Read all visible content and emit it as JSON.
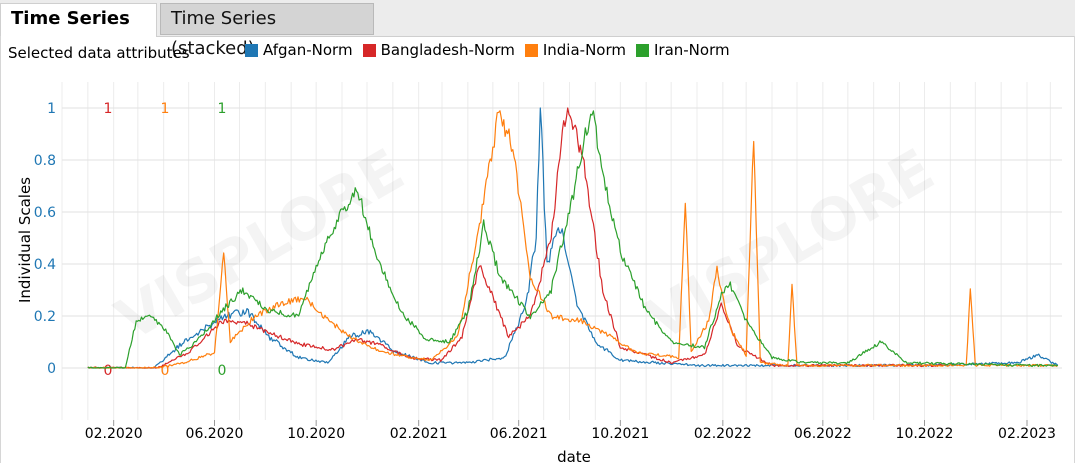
{
  "tabs": [
    {
      "label": "Time Series",
      "active": true
    },
    {
      "label": "Time Series (stacked)",
      "active": false
    }
  ],
  "selected_label": "Selected data attributes",
  "chart_data": {
    "type": "line",
    "xlabel": "date",
    "ylabel": "Individual Scales",
    "x_range": [
      "2019-12-01",
      "2023-03-15"
    ],
    "ylim": [
      -0.2,
      1.1
    ],
    "x_ticks": [
      "02.2020",
      "06.2020",
      "10.2020",
      "02.2021",
      "06.2021",
      "10.2021",
      "02.2022",
      "06.2022",
      "10.2022",
      "02.2023"
    ],
    "y_ticks": [
      "0",
      "0.2",
      "0.4",
      "0.6",
      "0.8",
      "1"
    ],
    "grid": true,
    "legend": "top",
    "watermark": "VISPLORE",
    "series": [
      {
        "name": "Afgan-Norm",
        "color": "#1f77b4",
        "scale_min": "0",
        "scale_max": "1",
        "points": [
          [
            "2020-01-01",
            0
          ],
          [
            "2020-03-20",
            0
          ],
          [
            "2020-04-25",
            0.1
          ],
          [
            "2020-05-20",
            0.15
          ],
          [
            "2020-06-15",
            0.2
          ],
          [
            "2020-07-10",
            0.22
          ],
          [
            "2020-08-05",
            0.12
          ],
          [
            "2020-09-10",
            0.04
          ],
          [
            "2020-10-15",
            0.02
          ],
          [
            "2020-11-10",
            0.12
          ],
          [
            "2020-12-05",
            0.14
          ],
          [
            "2021-01-05",
            0.06
          ],
          [
            "2021-02-15",
            0.02
          ],
          [
            "2021-04-01",
            0.02
          ],
          [
            "2021-05-15",
            0.04
          ],
          [
            "2021-06-10",
            0.25
          ],
          [
            "2021-06-22",
            0.5
          ],
          [
            "2021-06-27",
            1.0
          ],
          [
            "2021-07-05",
            0.4
          ],
          [
            "2021-07-20",
            0.55
          ],
          [
            "2021-08-10",
            0.25
          ],
          [
            "2021-09-01",
            0.1
          ],
          [
            "2021-10-01",
            0.03
          ],
          [
            "2022-01-01",
            0.01
          ],
          [
            "2022-06-01",
            0.01
          ],
          [
            "2022-10-01",
            0.01
          ],
          [
            "2023-01-20",
            0.02
          ],
          [
            "2023-02-15",
            0.05
          ],
          [
            "2023-03-10",
            0.01
          ]
        ]
      },
      {
        "name": "Bangladesh-Norm",
        "color": "#d62728",
        "scale_min": "0",
        "scale_max": "1",
        "points": [
          [
            "2020-01-01",
            0
          ],
          [
            "2020-03-25",
            0
          ],
          [
            "2020-05-01",
            0.06
          ],
          [
            "2020-06-10",
            0.18
          ],
          [
            "2020-07-10",
            0.17
          ],
          [
            "2020-08-10",
            0.13
          ],
          [
            "2020-09-15",
            0.09
          ],
          [
            "2020-10-20",
            0.07
          ],
          [
            "2020-11-20",
            0.11
          ],
          [
            "2020-12-15",
            0.09
          ],
          [
            "2021-01-20",
            0.04
          ],
          [
            "2021-03-01",
            0.03
          ],
          [
            "2021-03-25",
            0.12
          ],
          [
            "2021-04-15",
            0.4
          ],
          [
            "2021-04-25",
            0.32
          ],
          [
            "2021-05-20",
            0.12
          ],
          [
            "2021-06-15",
            0.2
          ],
          [
            "2021-07-10",
            0.5
          ],
          [
            "2021-07-25",
            0.95
          ],
          [
            "2021-08-02",
            0.98
          ],
          [
            "2021-08-20",
            0.75
          ],
          [
            "2021-09-10",
            0.3
          ],
          [
            "2021-10-01",
            0.08
          ],
          [
            "2021-12-01",
            0.02
          ],
          [
            "2022-01-10",
            0.05
          ],
          [
            "2022-01-30",
            0.24
          ],
          [
            "2022-02-20",
            0.08
          ],
          [
            "2022-04-01",
            0.01
          ],
          [
            "2022-10-25",
            0.01
          ]
        ]
      },
      {
        "name": "India-Norm",
        "color": "#ff7f0e",
        "scale_min": "0",
        "scale_max": "1",
        "points": [
          [
            "2020-01-01",
            0
          ],
          [
            "2020-03-25",
            0
          ],
          [
            "2020-04-25",
            0.02
          ],
          [
            "2020-06-01",
            0.06
          ],
          [
            "2020-06-12",
            0.44
          ],
          [
            "2020-06-20",
            0.1
          ],
          [
            "2020-07-20",
            0.2
          ],
          [
            "2020-08-20",
            0.25
          ],
          [
            "2020-09-17",
            0.27
          ],
          [
            "2020-10-10",
            0.2
          ],
          [
            "2020-11-10",
            0.12
          ],
          [
            "2020-12-20",
            0.06
          ],
          [
            "2021-02-15",
            0.03
          ],
          [
            "2021-03-20",
            0.12
          ],
          [
            "2021-04-15",
            0.55
          ],
          [
            "2021-05-01",
            0.85
          ],
          [
            "2021-05-08",
            0.98
          ],
          [
            "2021-05-25",
            0.85
          ],
          [
            "2021-06-15",
            0.35
          ],
          [
            "2021-07-10",
            0.2
          ],
          [
            "2021-08-15",
            0.18
          ],
          [
            "2021-09-20",
            0.12
          ],
          [
            "2021-10-20",
            0.06
          ],
          [
            "2021-12-10",
            0.04
          ],
          [
            "2021-12-18",
            0.66
          ],
          [
            "2021-12-25",
            0.06
          ],
          [
            "2022-01-15",
            0.18
          ],
          [
            "2022-01-25",
            0.38
          ],
          [
            "2022-02-10",
            0.15
          ],
          [
            "2022-03-01",
            0.05
          ],
          [
            "2022-03-10",
            0.9
          ],
          [
            "2022-03-18",
            0.02
          ],
          [
            "2022-04-20",
            0.01
          ],
          [
            "2022-04-25",
            0.32
          ],
          [
            "2022-05-01",
            0.01
          ],
          [
            "2022-11-20",
            0.01
          ],
          [
            "2022-11-25",
            0.3
          ],
          [
            "2022-12-01",
            0.01
          ],
          [
            "2023-03-10",
            0.01
          ]
        ]
      },
      {
        "name": "Iran-Norm",
        "color": "#2ca02c",
        "scale_min": "0",
        "scale_max": "1",
        "points": [
          [
            "2020-01-01",
            0
          ],
          [
            "2020-02-15",
            0
          ],
          [
            "2020-02-28",
            0.18
          ],
          [
            "2020-03-15",
            0.21
          ],
          [
            "2020-04-05",
            0.14
          ],
          [
            "2020-04-20",
            0.05
          ],
          [
            "2020-05-10",
            0.1
          ],
          [
            "2020-06-10",
            0.22
          ],
          [
            "2020-07-05",
            0.3
          ],
          [
            "2020-08-05",
            0.22
          ],
          [
            "2020-09-10",
            0.2
          ],
          [
            "2020-10-01",
            0.4
          ],
          [
            "2020-11-01",
            0.6
          ],
          [
            "2020-11-20",
            0.68
          ],
          [
            "2020-12-10",
            0.45
          ],
          [
            "2021-01-10",
            0.22
          ],
          [
            "2021-02-10",
            0.11
          ],
          [
            "2021-03-10",
            0.1
          ],
          [
            "2021-04-01",
            0.22
          ],
          [
            "2021-04-20",
            0.55
          ],
          [
            "2021-05-10",
            0.35
          ],
          [
            "2021-06-15",
            0.2
          ],
          [
            "2021-07-10",
            0.3
          ],
          [
            "2021-08-01",
            0.6
          ],
          [
            "2021-08-20",
            0.9
          ],
          [
            "2021-08-28",
            1.0
          ],
          [
            "2021-09-10",
            0.75
          ],
          [
            "2021-10-01",
            0.45
          ],
          [
            "2021-11-01",
            0.22
          ],
          [
            "2021-12-01",
            0.1
          ],
          [
            "2022-01-10",
            0.08
          ],
          [
            "2022-02-01",
            0.3
          ],
          [
            "2022-02-10",
            0.32
          ],
          [
            "2022-03-01",
            0.18
          ],
          [
            "2022-04-01",
            0.04
          ],
          [
            "2022-05-10",
            0.02
          ],
          [
            "2022-07-01",
            0.02
          ],
          [
            "2022-08-10",
            0.1
          ],
          [
            "2022-09-10",
            0.02
          ],
          [
            "2023-02-01",
            0.01
          ],
          [
            "2023-03-10",
            0.01
          ]
        ]
      }
    ]
  }
}
